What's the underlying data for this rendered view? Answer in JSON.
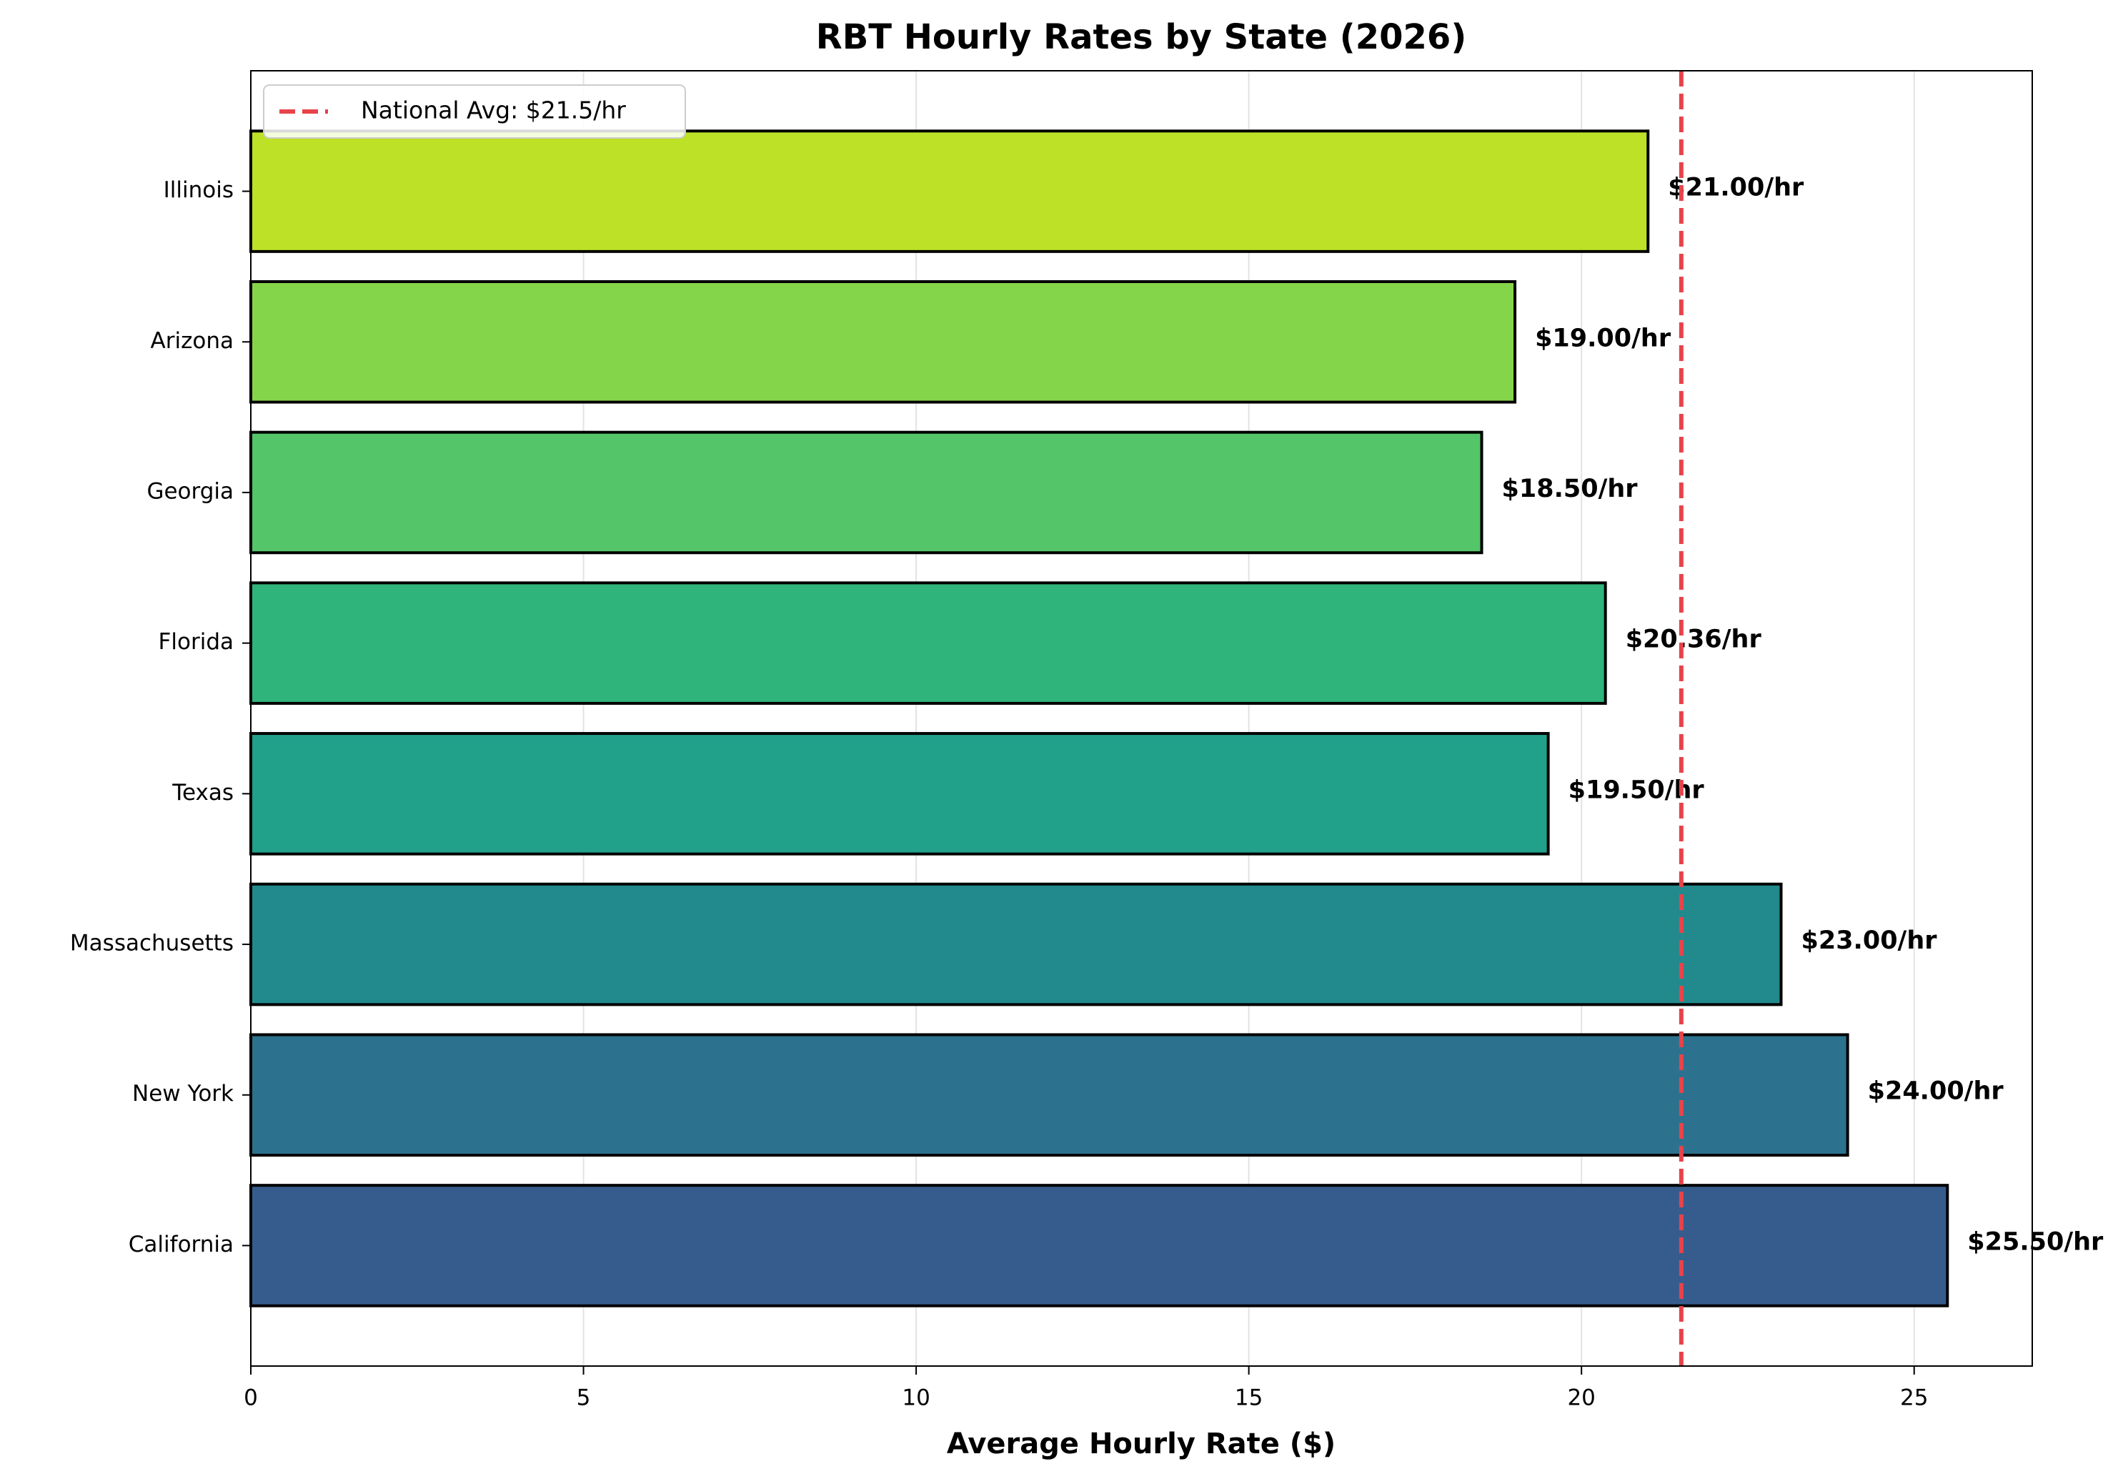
{
  "chart_data": {
    "type": "barh",
    "title": "RBT Hourly Rates by State (2026)",
    "x_label": "Average Hourly Rate ($)",
    "categories": [
      "California",
      "New York",
      "Massachusetts",
      "Texas",
      "Florida",
      "Georgia",
      "Arizona",
      "Illinois"
    ],
    "values": [
      25.5,
      24,
      23,
      19.5,
      20.36,
      18.5,
      19,
      21
    ],
    "value_labels": [
      "$25.50/hr",
      "$24.00/hr",
      "$23.00/hr",
      "$19.50/hr",
      "$20.36/hr",
      "$18.50/hr",
      "$19.00/hr",
      "$21.00/hr"
    ],
    "colors": [
      "#365c8d",
      "#2c728e",
      "#228a8d",
      "#21a08a",
      "#2fb47c",
      "#54c568",
      "#85d54a",
      "#bde126"
    ],
    "edge_color": "#000000",
    "xlim": [
      0,
      26.775
    ],
    "xticks": [
      0,
      5,
      10,
      15,
      20,
      25
    ],
    "grid": true,
    "reference_line": {
      "value": 21.5,
      "label": "National Avg: $21.5/hr",
      "color": "#e8434a"
    },
    "legend_position": "upper left"
  }
}
